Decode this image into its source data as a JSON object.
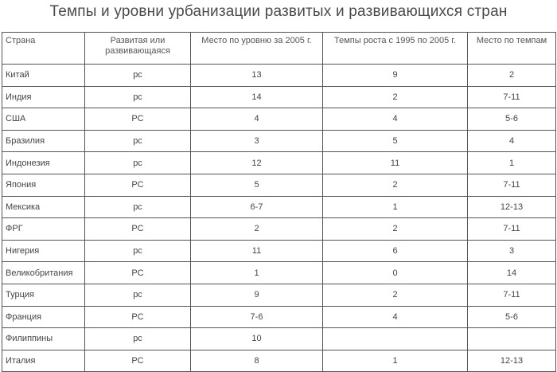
{
  "title": "Темпы и уровни урбанизации развитых и развивающихся стран",
  "table": {
    "headers": [
      "Страна",
      "Развитая или развивающаяся",
      "Место по уровню за 2005 г.",
      "Темпы роста с 1995 по 2005 г.",
      "Место по темпам"
    ],
    "rows": [
      [
        "Китай",
        "рс",
        "13",
        "9",
        "2"
      ],
      [
        "Индия",
        "рс",
        "14",
        "2",
        "7-11"
      ],
      [
        "США",
        "РС",
        "4",
        "4",
        "5-6"
      ],
      [
        "Бразилия",
        "рс",
        "3",
        "5",
        "4"
      ],
      [
        "Индонезия",
        "рс",
        "12",
        "11",
        "1"
      ],
      [
        "Япония",
        "РС",
        "5",
        "2",
        "7-11"
      ],
      [
        "Мексика",
        "рс",
        "6-7",
        "1",
        "12-13"
      ],
      [
        "ФРГ",
        "РС",
        "2",
        "2",
        "7-11"
      ],
      [
        "Нигерия",
        "рс",
        "11",
        "6",
        "3"
      ],
      [
        "Великобритания",
        "РС",
        "1",
        "0",
        "14"
      ],
      [
        "Турция",
        "рс",
        "9",
        "2",
        "7-11"
      ],
      [
        "Франция",
        "РС",
        "7-6",
        "4",
        "5-6"
      ],
      [
        "Филиппины",
        "рс",
        "10",
        "",
        ""
      ],
      [
        "Италия",
        "РС",
        "8",
        "1",
        "12-13"
      ]
    ]
  }
}
